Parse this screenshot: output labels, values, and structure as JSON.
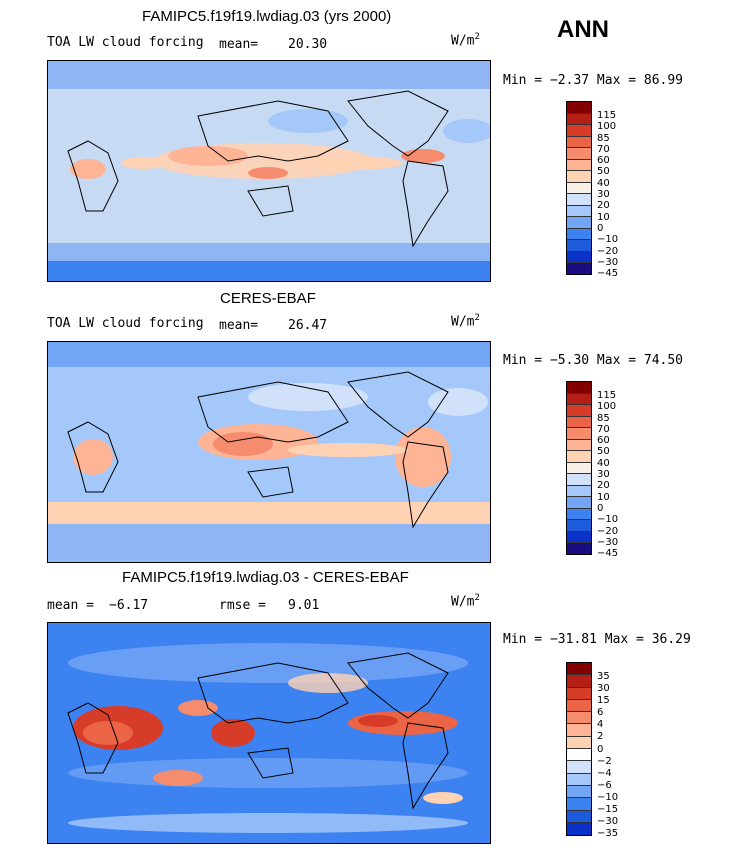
{
  "season": "ANN",
  "unit_base": "W/m",
  "unit_exp": "2",
  "colors": {
    "scale_A": [
      "#1a0d82",
      "#0a32c8",
      "#1e5adc",
      "#3c82f0",
      "#73a5f5",
      "#a5c8fa",
      "#d2e1fa",
      "#f8f0e6",
      "#ffd2b4",
      "#ffb496",
      "#f58c6e",
      "#eb6446",
      "#d73c28",
      "#b41e14",
      "#820000"
    ],
    "scale_B": [
      "#1a0d82",
      "#0a32c8",
      "#1e5adc",
      "#3c82f0",
      "#73a5f5",
      "#a5c8fa",
      "#d2e1fa",
      "#ffffff",
      "#ffd2b4",
      "#ffb496",
      "#f58c6e",
      "#eb6446",
      "#d73c28",
      "#b41e14",
      "#820000"
    ]
  },
  "panels": [
    {
      "title": "FAMIPC5.f19f19.lwdiag.03 (yrs 2000)",
      "left_label": "TOA LW cloud forcing",
      "stat1_label": "mean=",
      "stat1_value": "20.30",
      "minmax": "Min =  −2.37 Max =  86.99",
      "levels": [
        "115",
        "100",
        "85",
        "70",
        "60",
        "50",
        "40",
        "30",
        "20",
        "10",
        "0",
        "−10",
        "−20",
        "−30",
        "−45"
      ]
    },
    {
      "title": "CERES-EBAF",
      "left_label": "TOA LW cloud forcing",
      "stat1_label": "mean=",
      "stat1_value": "26.47",
      "minmax": "Min =  −5.30 Max =  74.50",
      "levels": [
        "115",
        "100",
        "85",
        "70",
        "60",
        "50",
        "40",
        "30",
        "20",
        "10",
        "0",
        "−10",
        "−20",
        "−30",
        "−45"
      ]
    },
    {
      "title": "FAMIPC5.f19f19.lwdiag.03 - CERES-EBAF",
      "stat1_label": "mean =",
      "stat1_value": "−6.17",
      "stat2_label": "rmse =",
      "stat2_value": "9.01",
      "minmax": "Min = −31.81 Max =  36.29",
      "levels": [
        "35",
        "30",
        "15",
        "6",
        "4",
        "2",
        "0",
        "−2",
        "−4",
        "−6",
        "−10",
        "−15",
        "−30",
        "−35"
      ]
    }
  ]
}
